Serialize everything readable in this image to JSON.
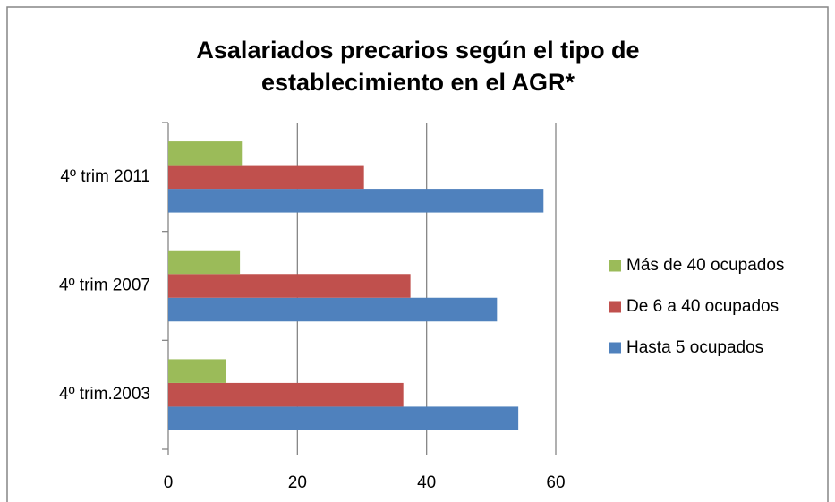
{
  "chart_data": {
    "type": "hbar",
    "title": [
      "Asalariados precarios según el tipo de",
      "establecimiento en el AGR*"
    ],
    "categories": [
      "4º trim.2003",
      "4º trim 2007",
      "4º trim 2011"
    ],
    "series": [
      {
        "name": "Hasta 5 ocupados",
        "color": "#4f81bd",
        "values": [
          54.2,
          50.9,
          58.1
        ]
      },
      {
        "name": "De 6 a 40 ocupados",
        "color": "#c0504d",
        "values": [
          36.4,
          37.5,
          30.3
        ]
      },
      {
        "name": "Más de 40 ocupados",
        "color": "#9bbb59",
        "values": [
          8.9,
          11.1,
          11.4
        ]
      }
    ],
    "xlim": [
      0,
      60
    ],
    "xticks": [
      0,
      20,
      40,
      60
    ],
    "grid": true,
    "legend": "right"
  }
}
